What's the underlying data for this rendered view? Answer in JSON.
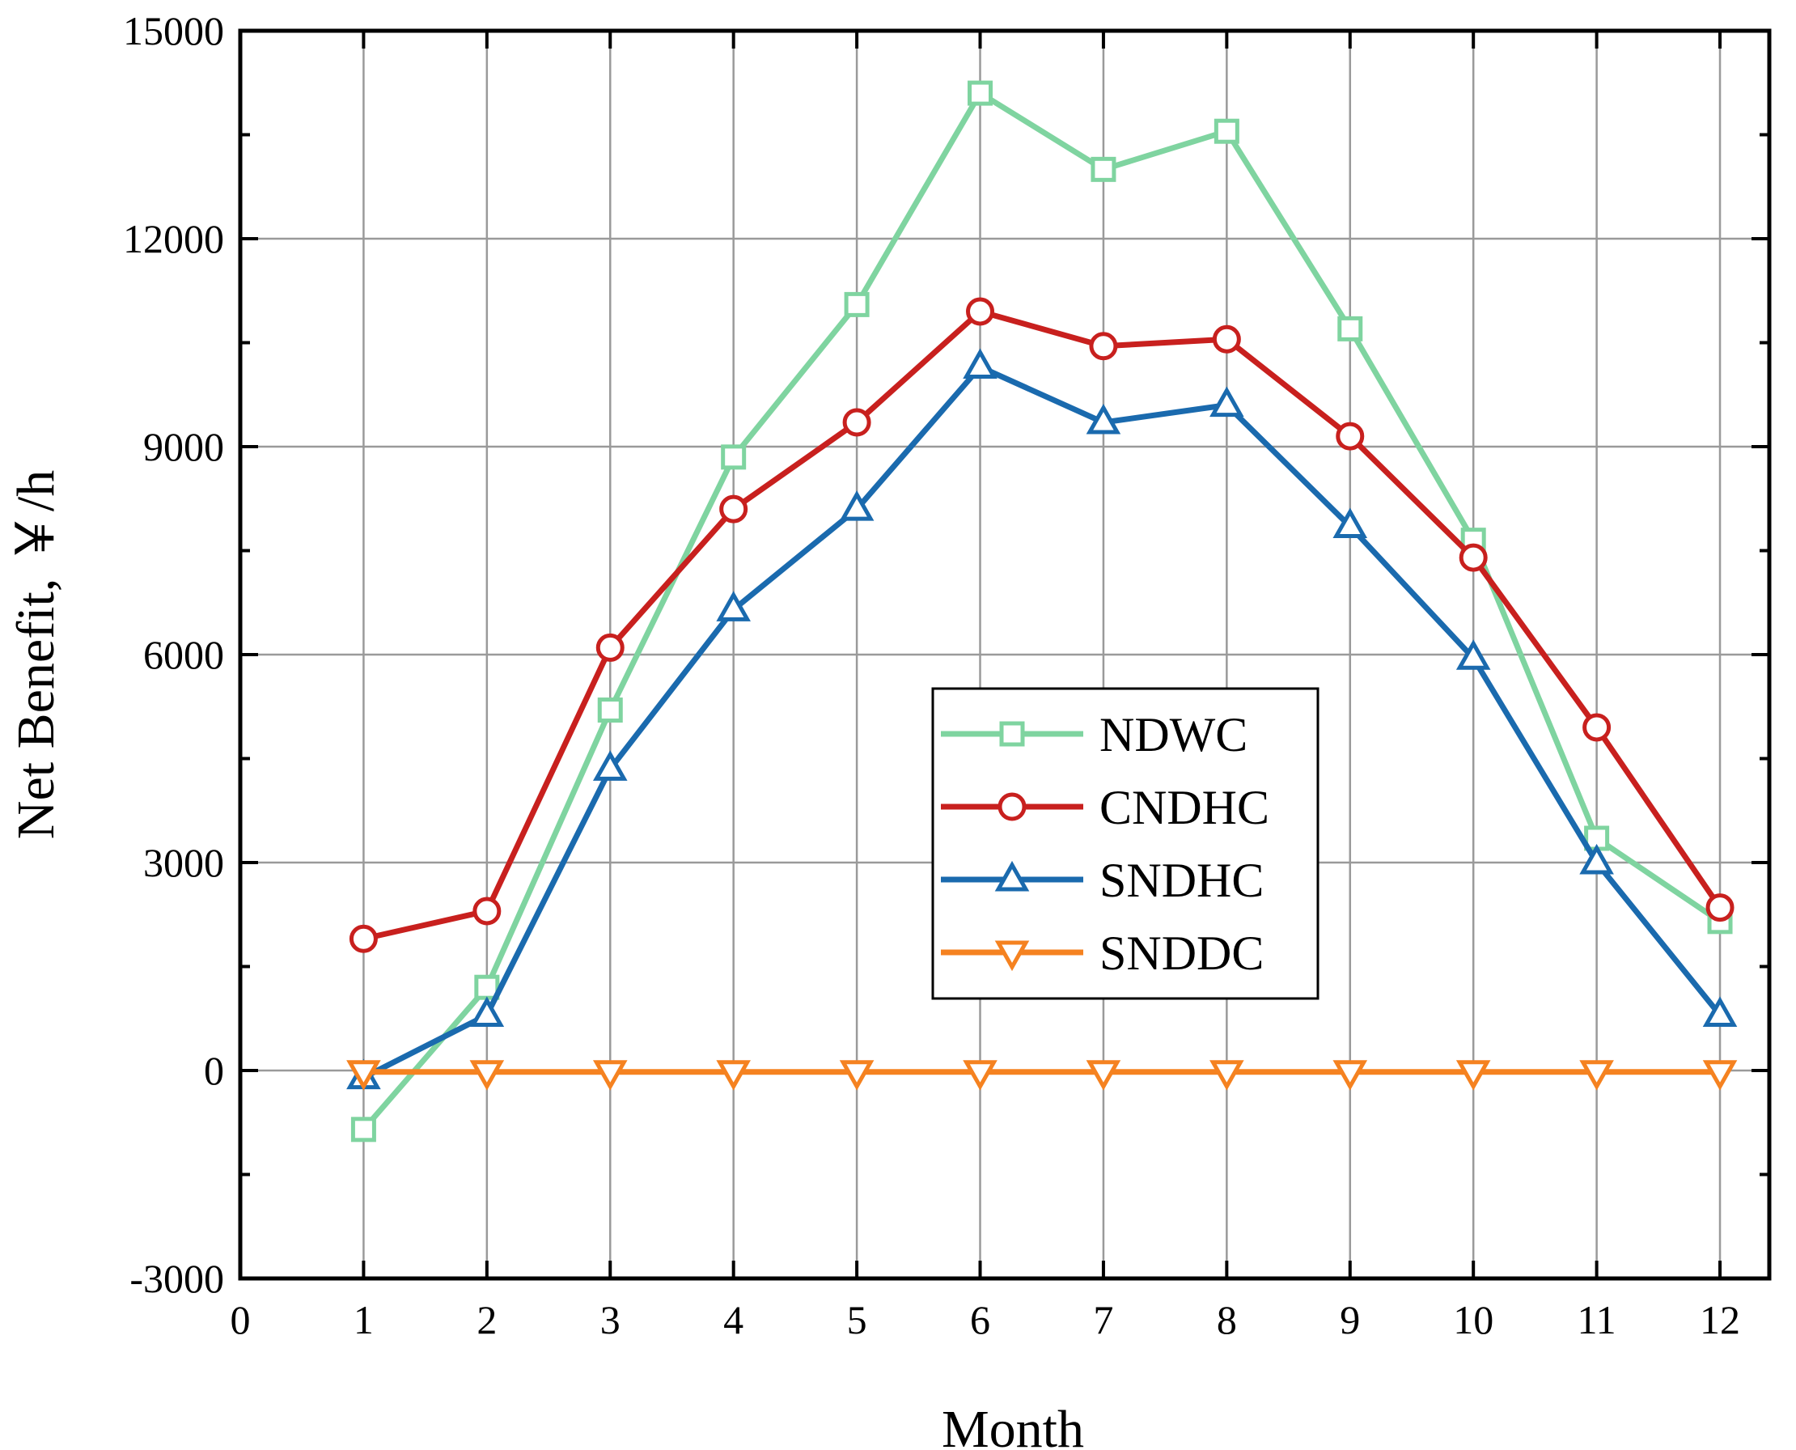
{
  "chart_data": {
    "type": "line",
    "title": "",
    "xlabel": "Month",
    "ylabel": "Net Benefit, ￥/h",
    "xlim": [
      0,
      12.4
    ],
    "ylim": [
      -3000,
      15000
    ],
    "xticks": [
      0,
      1,
      2,
      3,
      4,
      5,
      6,
      7,
      8,
      9,
      10,
      11,
      12
    ],
    "yticks": [
      -3000,
      0,
      3000,
      6000,
      9000,
      12000,
      15000
    ],
    "x_tick_labels": [
      "0",
      "1",
      "2",
      "3",
      "4",
      "5",
      "6",
      "7",
      "8",
      "9",
      "10",
      "11",
      "12"
    ],
    "y_tick_labels": [
      "-3000",
      "0",
      "3000",
      "6000",
      "9000",
      "12000",
      "15000"
    ],
    "grid": true,
    "legend_position": "center-right",
    "x": [
      1,
      2,
      3,
      4,
      5,
      6,
      7,
      8,
      9,
      10,
      11,
      12
    ],
    "series": [
      {
        "name": "NDWC",
        "color": "#7fd4a0",
        "marker": "square",
        "values": [
          -850,
          1200,
          5200,
          8850,
          11050,
          14100,
          13000,
          13550,
          10700,
          7650,
          3350,
          2150
        ]
      },
      {
        "name": "CNDHC",
        "color": "#c8201e",
        "marker": "circle",
        "values": [
          1900,
          2300,
          6100,
          8100,
          9350,
          10950,
          10450,
          10550,
          9150,
          7400,
          4950,
          2350
        ]
      },
      {
        "name": "SNDHC",
        "color": "#1a6aae",
        "marker": "triangle-up",
        "values": [
          -100,
          800,
          4350,
          6650,
          8100,
          10150,
          9350,
          9600,
          7850,
          5950,
          3000,
          800
        ]
      },
      {
        "name": "SNDDC",
        "color": "#f58220",
        "marker": "triangle-down",
        "values": [
          -20,
          -20,
          -20,
          -20,
          -20,
          -20,
          -20,
          -20,
          -20,
          -20,
          -20,
          -20
        ]
      }
    ]
  }
}
